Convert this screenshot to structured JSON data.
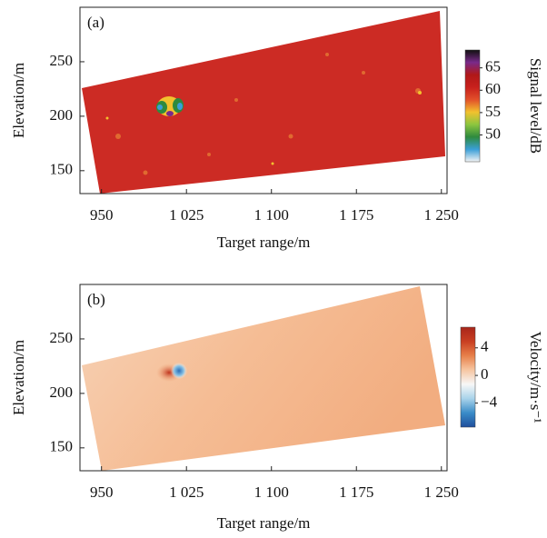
{
  "chart_data": [
    {
      "type": "heatmap",
      "title": "(a)",
      "xlabel": "Target range/m",
      "ylabel": "Elevation/m",
      "xlim": [
        931,
        1255
      ],
      "ylim": [
        129,
        300
      ],
      "xticks": [
        950,
        {
          "value": 1025,
          "label": "1 025"
        },
        {
          "value": 1100,
          "label": "1 100"
        },
        {
          "value": 1175,
          "label": "1 175"
        },
        {
          "value": 1250,
          "label": "1 250"
        }
      ],
      "yticks": [
        150,
        200,
        250
      ],
      "colorbar_label": "Signal level/dB",
      "clim": [
        44,
        69
      ],
      "cticks": [
        50,
        55,
        60,
        65
      ],
      "colormap": [
        "#f4f4f4",
        "#3a9fd8",
        "#2e8a3e",
        "#8cc63f",
        "#f2c12e",
        "#e2502a",
        "#c8201c",
        "#b01818",
        "#7a2a8a",
        "#101010"
      ]
    },
    {
      "type": "heatmap",
      "title": "(b)",
      "xlabel": "Target range/m",
      "ylabel": "Elevation/m",
      "xlim": [
        931,
        1255
      ],
      "ylim": [
        129,
        300
      ],
      "xticks": [
        950,
        {
          "value": 1025,
          "label": "1 025"
        },
        {
          "value": 1100,
          "label": "1 100"
        },
        {
          "value": 1175,
          "label": "1 175"
        },
        {
          "value": 1250,
          "label": "1 250"
        }
      ],
      "yticks": [
        150,
        200,
        250
      ],
      "colorbar_label": "Velocity/m·s⁻¹",
      "clim": [
        -7.5,
        7
      ],
      "cticks": [
        {
          "value": -4,
          "label": "−4"
        },
        0,
        4
      ],
      "colormap": [
        "#1f4e9c",
        "#3a8cc8",
        "#a9d3ea",
        "#f7f7f7",
        "#f6c6a2",
        "#e7804a",
        "#c93f22",
        "#a8261a"
      ]
    }
  ]
}
